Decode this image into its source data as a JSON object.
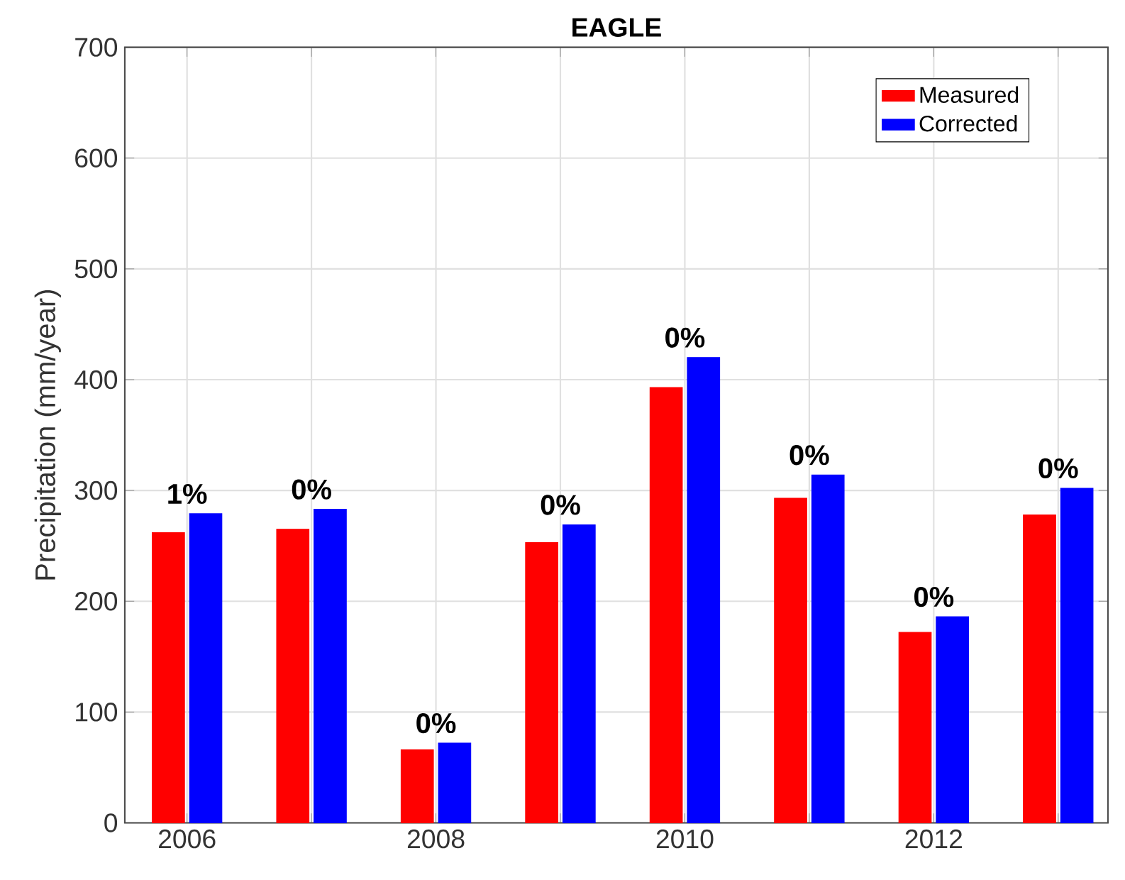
{
  "chart_data": {
    "type": "bar",
    "title": "EAGLE",
    "ylabel": "Precipitation (mm/year)",
    "x": [
      2006,
      2007,
      2008,
      2009,
      2010,
      2011,
      2012,
      2013
    ],
    "series": [
      {
        "name": "Measured",
        "color": "#ff0000",
        "values": [
          262,
          265,
          66,
          253,
          393,
          293,
          172,
          278
        ]
      },
      {
        "name": "Corrected",
        "color": "#0000ff",
        "values": [
          279,
          283,
          72,
          269,
          420,
          314,
          186,
          302
        ]
      }
    ],
    "xlim": [
      2005.5,
      2013.4
    ],
    "xticks": [
      2006,
      {
        "value": 2007,
        "label": null
      },
      2008,
      {
        "value": 2009,
        "label": null
      },
      2010,
      {
        "value": 2011,
        "label": null
      },
      2012,
      {
        "value": 2013,
        "label": null
      }
    ],
    "ylim": [
      0,
      700
    ],
    "yticks": [
      0,
      100,
      200,
      300,
      400,
      500,
      600,
      700
    ],
    "grid": true,
    "legend": "top right",
    "annotations": [
      {
        "text": "1%",
        "x": 2006,
        "y": 279
      },
      {
        "text": "0%",
        "x": 2007,
        "y": 283
      },
      {
        "text": "0%",
        "x": 2008,
        "y": 72
      },
      {
        "text": "0%",
        "x": 2009,
        "y": 269
      },
      {
        "text": "0%",
        "x": 2010,
        "y": 420
      },
      {
        "text": "0%",
        "x": 2011,
        "y": 314
      },
      {
        "text": "0%",
        "x": 2012,
        "y": 186
      },
      {
        "text": "0%",
        "x": 2013,
        "y": 302
      }
    ]
  }
}
